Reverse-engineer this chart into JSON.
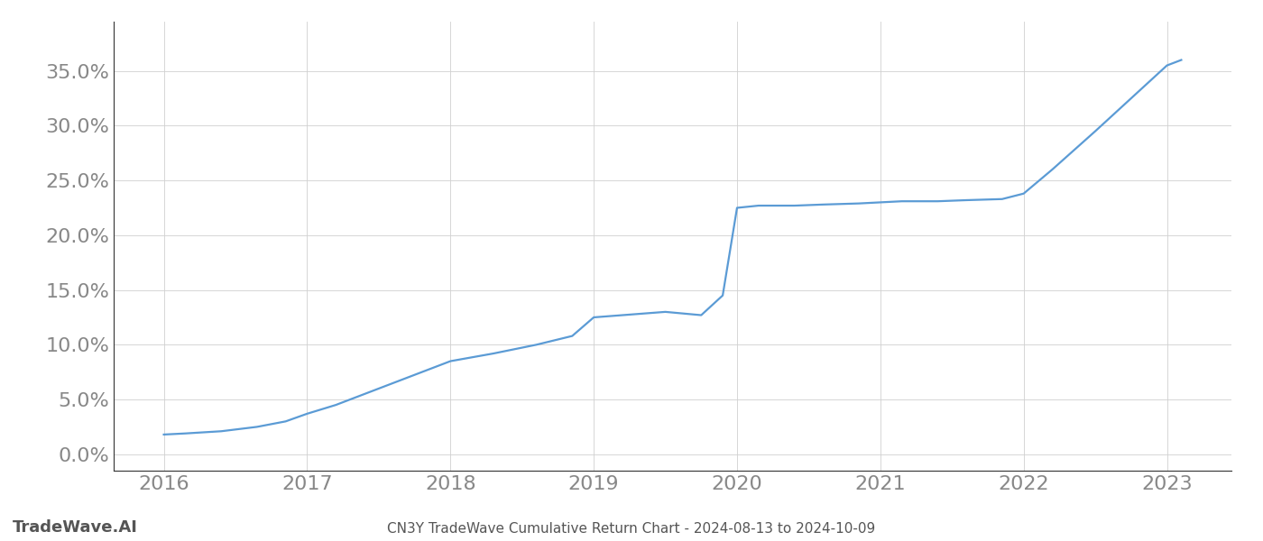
{
  "title": "CN3Y TradeWave Cumulative Return Chart - 2024-08-13 to 2024-10-09",
  "watermark": "TradeWave.AI",
  "line_color": "#5b9bd5",
  "background_color": "#ffffff",
  "grid_color": "#d0d0d0",
  "x_values": [
    2016.0,
    2016.15,
    2016.4,
    2016.65,
    2016.85,
    2017.0,
    2017.2,
    2017.5,
    2017.8,
    2018.0,
    2018.3,
    2018.6,
    2018.85,
    2019.0,
    2019.2,
    2019.5,
    2019.75,
    2019.9,
    2020.0,
    2020.15,
    2020.4,
    2020.6,
    2020.85,
    2021.0,
    2021.15,
    2021.4,
    2021.6,
    2021.85,
    2022.0,
    2022.2,
    2022.5,
    2022.75,
    2023.0,
    2023.1
  ],
  "y_values": [
    1.8,
    1.9,
    2.1,
    2.5,
    3.0,
    3.7,
    4.5,
    6.0,
    7.5,
    8.5,
    9.2,
    10.0,
    10.8,
    12.5,
    12.7,
    13.0,
    12.7,
    14.5,
    22.5,
    22.7,
    22.7,
    22.8,
    22.9,
    23.0,
    23.1,
    23.1,
    23.2,
    23.3,
    23.8,
    26.0,
    29.5,
    32.5,
    35.5,
    36.0
  ],
  "xlim": [
    2015.65,
    2023.45
  ],
  "ylim": [
    -1.5,
    39.5
  ],
  "yticks": [
    0.0,
    5.0,
    10.0,
    15.0,
    20.0,
    25.0,
    30.0,
    35.0
  ],
  "xticks": [
    2016,
    2017,
    2018,
    2019,
    2020,
    2021,
    2022,
    2023
  ],
  "line_width": 1.6,
  "title_fontsize": 11,
  "tick_fontsize": 16,
  "watermark_fontsize": 13,
  "title_color": "#555555",
  "watermark_color": "#555555",
  "tick_color": "#888888"
}
